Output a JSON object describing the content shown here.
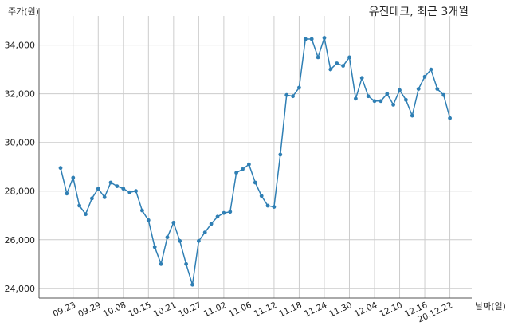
{
  "chart_data": {
    "type": "line",
    "title": "유진테크, 최근 3개월",
    "ylabel": "주가(원)",
    "xlabel": "날짜(일)",
    "color": "#2f7fb4",
    "grid": true,
    "ylim": [
      23600,
      35200
    ],
    "yticks": [
      24000,
      26000,
      28000,
      30000,
      32000,
      34000
    ],
    "ytick_labels": [
      "24,000",
      "26,000",
      "28,000",
      "30,000",
      "32,000",
      "34,000"
    ],
    "xtick_labels": [
      "09.23",
      "09.29",
      "10.08",
      "10.15",
      "10.21",
      "10.27",
      "11.02",
      "11.06",
      "11.12",
      "11.18",
      "11.24",
      "11.30",
      "12.04",
      "12.10",
      "12.16",
      "20.12.22"
    ],
    "xtick_indices": [
      2,
      6,
      10,
      14,
      18,
      22,
      26,
      30,
      34,
      38,
      42,
      46,
      50,
      54,
      58,
      62
    ],
    "values": [
      28950,
      27900,
      28550,
      27400,
      27050,
      27700,
      28100,
      27750,
      28350,
      28200,
      28100,
      27950,
      28000,
      27200,
      26800,
      25700,
      25000,
      26100,
      26700,
      25950,
      25000,
      24150,
      25950,
      26300,
      26650,
      26950,
      27100,
      27150,
      28750,
      28900,
      29100,
      28350,
      27800,
      27400,
      27350,
      29500,
      31950,
      31900,
      32250,
      34250,
      34250,
      33500,
      34300,
      33000,
      33250,
      33150,
      33500,
      31800,
      32650,
      31900,
      31700,
      31700,
      32000,
      31550,
      32150,
      31750,
      31100,
      32200,
      32700,
      33000,
      32200,
      31950,
      31000
    ]
  }
}
